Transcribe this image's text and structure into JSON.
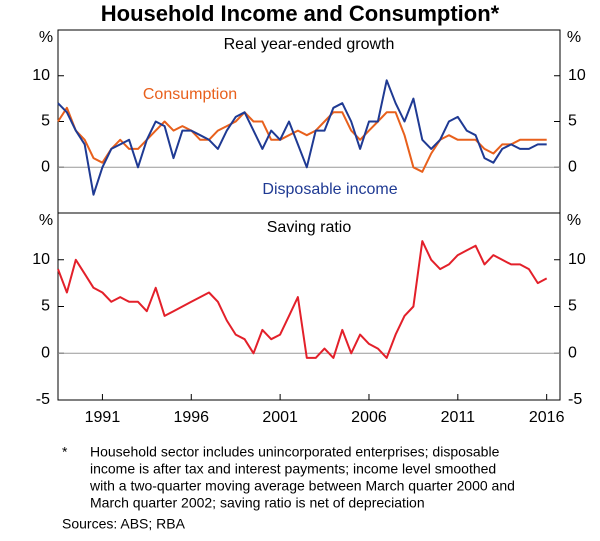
{
  "title": "Household Income and Consumption*",
  "chart_data": [
    {
      "type": "line",
      "title": "Real year-ended growth",
      "y_unit": "%",
      "x": [
        1988.5,
        1989,
        1989.5,
        1990,
        1990.5,
        1991,
        1991.5,
        1992,
        1992.5,
        1993,
        1993.5,
        1994,
        1994.5,
        1995,
        1995.5,
        1996,
        1996.5,
        1997,
        1997.5,
        1998,
        1998.5,
        1999,
        1999.5,
        2000,
        2000.5,
        2001,
        2001.5,
        2002,
        2002.5,
        2003,
        2003.5,
        2004,
        2004.5,
        2005,
        2005.5,
        2006,
        2006.5,
        2007,
        2007.5,
        2008,
        2008.5,
        2009,
        2009.5,
        2010,
        2010.5,
        2011,
        2011.5,
        2012,
        2012.5,
        2013,
        2013.5,
        2014,
        2014.5,
        2015,
        2015.5,
        2016
      ],
      "series": [
        {
          "name": "Consumption",
          "color": "#e8601c",
          "values": [
            5,
            6.5,
            4,
            3,
            1,
            0.5,
            2,
            3,
            2,
            2,
            3,
            4,
            5,
            4,
            4.5,
            4,
            3,
            3,
            4,
            4.5,
            5,
            6,
            5,
            5,
            3,
            3,
            3.5,
            4,
            3.5,
            4,
            5,
            6,
            6,
            4,
            3,
            4,
            5,
            6,
            6,
            3.5,
            0,
            -0.5,
            1.5,
            3,
            3.5,
            3,
            3,
            3,
            2,
            1.5,
            2.5,
            2.5,
            3,
            3,
            3,
            3
          ]
        },
        {
          "name": "Disposable income",
          "color": "#1f3a93",
          "values": [
            7,
            6,
            4,
            2.5,
            -3,
            0,
            2,
            2.5,
            3,
            0,
            3,
            5,
            4.5,
            1,
            4,
            4,
            3.5,
            3,
            2,
            4,
            5.5,
            6,
            4,
            2,
            4,
            3,
            5,
            2.5,
            0,
            4,
            4,
            6.5,
            7,
            5,
            2,
            5,
            5,
            9.5,
            7,
            5,
            7.5,
            3,
            2,
            3,
            5,
            5.5,
            4,
            3.5,
            1,
            0.5,
            2,
            2.5,
            2,
            2,
            2.5,
            2.5
          ]
        }
      ],
      "xlim": [
        1988.5,
        2016.75
      ],
      "ylim": [
        -5,
        15
      ],
      "yticks": [
        0,
        5,
        10
      ]
    },
    {
      "type": "line",
      "title": "Saving ratio",
      "y_unit": "%",
      "x": [
        1988.5,
        1989,
        1989.5,
        1990,
        1990.5,
        1991,
        1991.5,
        1992,
        1992.5,
        1993,
        1993.5,
        1994,
        1994.5,
        1995,
        1995.5,
        1996,
        1996.5,
        1997,
        1997.5,
        1998,
        1998.5,
        1999,
        1999.5,
        2000,
        2000.5,
        2001,
        2001.5,
        2002,
        2002.5,
        2003,
        2003.5,
        2004,
        2004.5,
        2005,
        2005.5,
        2006,
        2006.5,
        2007,
        2007.5,
        2008,
        2008.5,
        2009,
        2009.5,
        2010,
        2010.5,
        2011,
        2011.5,
        2012,
        2012.5,
        2013,
        2013.5,
        2014,
        2014.5,
        2015,
        2015.5,
        2016
      ],
      "series": [
        {
          "name": "Saving ratio",
          "color": "#e3202a",
          "values": [
            9,
            6.5,
            10,
            8.5,
            7,
            6.5,
            5.5,
            6,
            5.5,
            5.5,
            4.5,
            7,
            4,
            4.5,
            5,
            5.5,
            6,
            6.5,
            5.5,
            3.5,
            2,
            1.5,
            0,
            2.5,
            1.5,
            2,
            4,
            6,
            -0.5,
            -0.5,
            0.5,
            -0.5,
            2.5,
            0,
            2,
            1,
            0.5,
            -0.5,
            2,
            4,
            5,
            12,
            10,
            9,
            9.5,
            10.5,
            11,
            11.5,
            9.5,
            10.5,
            10,
            9.5,
            9.5,
            9,
            7.5,
            8
          ]
        }
      ],
      "xlim": [
        1988.5,
        2016.75
      ],
      "ylim": [
        -5,
        15
      ],
      "yticks": [
        -5,
        0,
        5,
        10
      ],
      "xticks": [
        1991,
        1996,
        2001,
        2006,
        2011,
        2016
      ]
    }
  ],
  "footnote": {
    "marker": "*",
    "lines": [
      "Household sector includes unincorporated enterprises; disposable",
      "income is after tax and interest payments; income level smoothed",
      "with a two-quarter moving average between March quarter 2000 and",
      "March quarter 2002; saving ratio is net of depreciation"
    ]
  },
  "sources": "Sources:   ABS; RBA"
}
